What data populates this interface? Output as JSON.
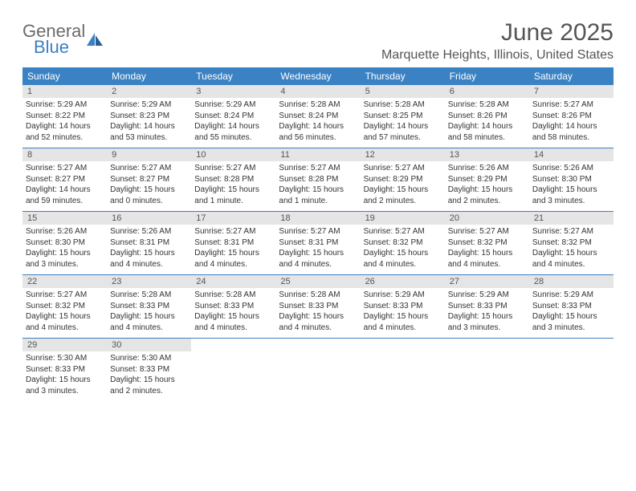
{
  "brand": {
    "top": "General",
    "bottom": "Blue",
    "top_color": "#6b6b6b",
    "bottom_color": "#3b7fc4"
  },
  "title": "June 2025",
  "location": "Marquette Heights, Illinois, United States",
  "header_bg": "#3b82c4",
  "header_fg": "#ffffff",
  "daynum_bg": "#e5e5e5",
  "rule_color": "#3b7fc4",
  "day_headers": [
    "Sunday",
    "Monday",
    "Tuesday",
    "Wednesday",
    "Thursday",
    "Friday",
    "Saturday"
  ],
  "weeks": [
    [
      {
        "n": "1",
        "sunrise": "5:29 AM",
        "sunset": "8:22 PM",
        "daylight": "14 hours and 52 minutes."
      },
      {
        "n": "2",
        "sunrise": "5:29 AM",
        "sunset": "8:23 PM",
        "daylight": "14 hours and 53 minutes."
      },
      {
        "n": "3",
        "sunrise": "5:29 AM",
        "sunset": "8:24 PM",
        "daylight": "14 hours and 55 minutes."
      },
      {
        "n": "4",
        "sunrise": "5:28 AM",
        "sunset": "8:24 PM",
        "daylight": "14 hours and 56 minutes."
      },
      {
        "n": "5",
        "sunrise": "5:28 AM",
        "sunset": "8:25 PM",
        "daylight": "14 hours and 57 minutes."
      },
      {
        "n": "6",
        "sunrise": "5:28 AM",
        "sunset": "8:26 PM",
        "daylight": "14 hours and 58 minutes."
      },
      {
        "n": "7",
        "sunrise": "5:27 AM",
        "sunset": "8:26 PM",
        "daylight": "14 hours and 58 minutes."
      }
    ],
    [
      {
        "n": "8",
        "sunrise": "5:27 AM",
        "sunset": "8:27 PM",
        "daylight": "14 hours and 59 minutes."
      },
      {
        "n": "9",
        "sunrise": "5:27 AM",
        "sunset": "8:27 PM",
        "daylight": "15 hours and 0 minutes."
      },
      {
        "n": "10",
        "sunrise": "5:27 AM",
        "sunset": "8:28 PM",
        "daylight": "15 hours and 1 minute."
      },
      {
        "n": "11",
        "sunrise": "5:27 AM",
        "sunset": "8:28 PM",
        "daylight": "15 hours and 1 minute."
      },
      {
        "n": "12",
        "sunrise": "5:27 AM",
        "sunset": "8:29 PM",
        "daylight": "15 hours and 2 minutes."
      },
      {
        "n": "13",
        "sunrise": "5:26 AM",
        "sunset": "8:29 PM",
        "daylight": "15 hours and 2 minutes."
      },
      {
        "n": "14",
        "sunrise": "5:26 AM",
        "sunset": "8:30 PM",
        "daylight": "15 hours and 3 minutes."
      }
    ],
    [
      {
        "n": "15",
        "sunrise": "5:26 AM",
        "sunset": "8:30 PM",
        "daylight": "15 hours and 3 minutes."
      },
      {
        "n": "16",
        "sunrise": "5:26 AM",
        "sunset": "8:31 PM",
        "daylight": "15 hours and 4 minutes."
      },
      {
        "n": "17",
        "sunrise": "5:27 AM",
        "sunset": "8:31 PM",
        "daylight": "15 hours and 4 minutes."
      },
      {
        "n": "18",
        "sunrise": "5:27 AM",
        "sunset": "8:31 PM",
        "daylight": "15 hours and 4 minutes."
      },
      {
        "n": "19",
        "sunrise": "5:27 AM",
        "sunset": "8:32 PM",
        "daylight": "15 hours and 4 minutes."
      },
      {
        "n": "20",
        "sunrise": "5:27 AM",
        "sunset": "8:32 PM",
        "daylight": "15 hours and 4 minutes."
      },
      {
        "n": "21",
        "sunrise": "5:27 AM",
        "sunset": "8:32 PM",
        "daylight": "15 hours and 4 minutes."
      }
    ],
    [
      {
        "n": "22",
        "sunrise": "5:27 AM",
        "sunset": "8:32 PM",
        "daylight": "15 hours and 4 minutes."
      },
      {
        "n": "23",
        "sunrise": "5:28 AM",
        "sunset": "8:33 PM",
        "daylight": "15 hours and 4 minutes."
      },
      {
        "n": "24",
        "sunrise": "5:28 AM",
        "sunset": "8:33 PM",
        "daylight": "15 hours and 4 minutes."
      },
      {
        "n": "25",
        "sunrise": "5:28 AM",
        "sunset": "8:33 PM",
        "daylight": "15 hours and 4 minutes."
      },
      {
        "n": "26",
        "sunrise": "5:29 AM",
        "sunset": "8:33 PM",
        "daylight": "15 hours and 4 minutes."
      },
      {
        "n": "27",
        "sunrise": "5:29 AM",
        "sunset": "8:33 PM",
        "daylight": "15 hours and 3 minutes."
      },
      {
        "n": "28",
        "sunrise": "5:29 AM",
        "sunset": "8:33 PM",
        "daylight": "15 hours and 3 minutes."
      }
    ],
    [
      {
        "n": "29",
        "sunrise": "5:30 AM",
        "sunset": "8:33 PM",
        "daylight": "15 hours and 3 minutes."
      },
      {
        "n": "30",
        "sunrise": "5:30 AM",
        "sunset": "8:33 PM",
        "daylight": "15 hours and 2 minutes."
      },
      null,
      null,
      null,
      null,
      null
    ]
  ],
  "labels": {
    "sunrise": "Sunrise:",
    "sunset": "Sunset:",
    "daylight": "Daylight:"
  }
}
